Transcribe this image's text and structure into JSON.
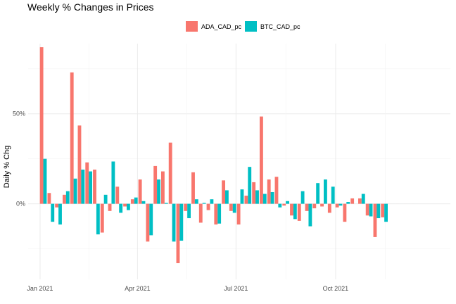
{
  "chart_data": {
    "type": "bar",
    "title": "Weekly % Changes in Prices",
    "xlabel": "",
    "ylabel": "Daily % Chg",
    "x_ticks": [
      "Jan 2021",
      "Apr 2021",
      "Jul 2021",
      "Oct 2021"
    ],
    "x_tick_dates": [
      "2021-01-01",
      "2021-04-01",
      "2021-07-01",
      "2021-10-01"
    ],
    "x_range": [
      "2020-12-21",
      "2022-01-15"
    ],
    "y_ticks": [
      "0%",
      "50%"
    ],
    "y_tick_values": [
      0,
      50
    ],
    "ylim": [
      -42,
      89
    ],
    "grid": true,
    "legend_position": "top",
    "x": [
      "2021-01-04",
      "2021-01-11",
      "2021-01-18",
      "2021-01-25",
      "2021-02-01",
      "2021-02-08",
      "2021-02-15",
      "2021-02-22",
      "2021-03-01",
      "2021-03-08",
      "2021-03-15",
      "2021-03-22",
      "2021-03-29",
      "2021-04-05",
      "2021-04-12",
      "2021-04-19",
      "2021-04-26",
      "2021-05-03",
      "2021-05-10",
      "2021-05-17",
      "2021-05-24",
      "2021-05-31",
      "2021-06-07",
      "2021-06-14",
      "2021-06-21",
      "2021-06-28",
      "2021-07-05",
      "2021-07-12",
      "2021-07-19",
      "2021-07-26",
      "2021-08-02",
      "2021-08-09",
      "2021-08-16",
      "2021-08-23",
      "2021-08-30",
      "2021-09-06",
      "2021-09-13",
      "2021-09-20",
      "2021-09-27",
      "2021-10-04",
      "2021-10-11",
      "2021-10-18",
      "2021-10-25",
      "2021-11-01",
      "2021-11-08",
      "2021-11-15",
      "2021-11-22",
      "2021-11-29",
      "2021-12-06",
      "2021-12-13"
    ],
    "series": [
      {
        "name": "ADA_CAD_pc",
        "color": "#f8766d",
        "values": [
          87,
          6,
          -2,
          5,
          73,
          43.5,
          23,
          19,
          -16,
          -4,
          9.5,
          -1.5,
          2.5,
          13.5,
          -21,
          21,
          18,
          34,
          -33,
          -4,
          17.5,
          -10.5,
          -3.5,
          -11.5,
          13,
          -4,
          -11.5,
          4.5,
          12,
          48.5,
          13.5,
          15,
          -1,
          -6.5,
          -9.5,
          -4,
          -2.5,
          -1.5,
          -5,
          -2,
          -10,
          3,
          3,
          -6.5,
          -18.5,
          -7.5,
          0,
          0,
          0,
          0
        ]
      },
      {
        "name": "BTC_CAD_pc",
        "color": "#00bfc4",
        "values": [
          25,
          -10,
          -11.5,
          7,
          14,
          19,
          18,
          -17,
          5,
          23.5,
          -5,
          -3.5,
          3.5,
          1.5,
          -17.5,
          13.5,
          0.5,
          -21,
          -20.5,
          -8,
          2.5,
          0.5,
          2.5,
          -11,
          7.5,
          -5,
          8,
          20.5,
          7.5,
          5.5,
          6.5,
          -2,
          1.5,
          -8.5,
          7,
          -12.5,
          11.5,
          13.5,
          9.5,
          -1,
          1,
          0,
          5.5,
          -7,
          -8,
          -10,
          0,
          0,
          0,
          0
        ]
      }
    ]
  }
}
